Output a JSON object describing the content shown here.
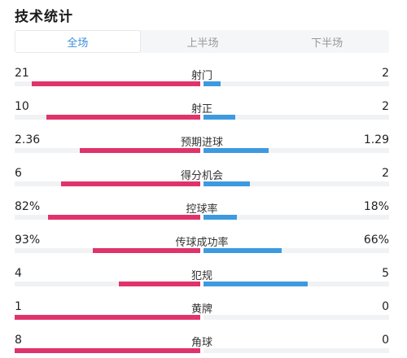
{
  "header": {
    "title": "技术统计"
  },
  "tabs": [
    {
      "label": "全场",
      "active": true
    },
    {
      "label": "上半场",
      "active": false
    },
    {
      "label": "下半场",
      "active": false
    }
  ],
  "colors": {
    "home": "#e0336b",
    "away": "#3d9ae0",
    "accent": "#3d8fdc"
  },
  "stats": [
    {
      "label": "射门",
      "home": "21",
      "away": "2",
      "home_fill": 0.91,
      "away_fill": 0.09
    },
    {
      "label": "射正",
      "home": "10",
      "away": "2",
      "home_fill": 0.83,
      "away_fill": 0.17
    },
    {
      "label": "预期进球",
      "home": "2.36",
      "away": "1.29",
      "home_fill": 0.65,
      "away_fill": 0.35
    },
    {
      "label": "得分机会",
      "home": "6",
      "away": "2",
      "home_fill": 0.75,
      "away_fill": 0.25
    },
    {
      "label": "控球率",
      "home": "82%",
      "away": "18%",
      "home_fill": 0.82,
      "away_fill": 0.18
    },
    {
      "label": "传球成功率",
      "home": "93%",
      "away": "66%",
      "home_fill": 0.58,
      "away_fill": 0.42
    },
    {
      "label": "犯规",
      "home": "4",
      "away": "5",
      "home_fill": 0.44,
      "away_fill": 0.56
    },
    {
      "label": "黄牌",
      "home": "1",
      "away": "0",
      "home_fill": 1.0,
      "away_fill": 0.0
    },
    {
      "label": "角球",
      "home": "8",
      "away": "0",
      "home_fill": 1.0,
      "away_fill": 0.0
    }
  ]
}
